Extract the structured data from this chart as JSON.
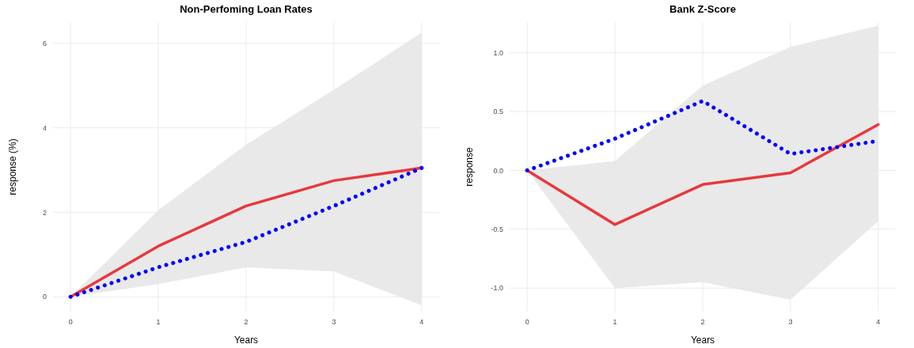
{
  "chart_data": [
    {
      "type": "line",
      "title": "Non-Perfoming Loan Rates",
      "xlabel": "Years",
      "ylabel": "response (%)",
      "x": [
        0,
        1,
        2,
        3,
        4
      ],
      "xlim": [
        -0.2,
        4.2
      ],
      "xticks": [
        0,
        1,
        2,
        3,
        4
      ],
      "ylim": [
        -0.35,
        6.5
      ],
      "yticks": [
        0,
        2,
        4,
        6
      ],
      "grid": true,
      "series": [
        {
          "color": "#e8383d",
          "line_style": "solid",
          "values": [
            0,
            1.2,
            2.15,
            2.75,
            3.05
          ],
          "lower": [
            0,
            0.3,
            0.7,
            0.6,
            -0.2
          ],
          "upper": [
            0,
            2.05,
            3.6,
            4.9,
            6.25
          ]
        },
        {
          "color": "#0000ff",
          "line_style": "dotted",
          "values": [
            0,
            0.7,
            1.3,
            2.15,
            3.05
          ]
        }
      ]
    },
    {
      "type": "line",
      "title": "Bank Z-Score",
      "xlabel": "Years",
      "ylabel": "response",
      "x": [
        0,
        1,
        2,
        3,
        4
      ],
      "xlim": [
        -0.2,
        4.2
      ],
      "xticks": [
        0,
        1,
        2,
        3,
        4
      ],
      "ylim": [
        -1.2,
        1.26
      ],
      "yticks": [
        {
          "value": -1,
          "label": "-1.0"
        },
        {
          "value": -0.5,
          "label": "-0.5"
        },
        {
          "value": 0,
          "label": "0.0"
        },
        {
          "value": 0.5,
          "label": "0.5"
        },
        {
          "value": 1,
          "label": "1.0"
        }
      ],
      "grid": true,
      "series": [
        {
          "color": "#e8383d",
          "line_style": "solid",
          "values": [
            0,
            -0.46,
            -0.12,
            -0.02,
            0.39
          ],
          "lower": [
            0,
            -1.0,
            -0.95,
            -1.1,
            -0.43
          ],
          "upper": [
            0,
            0.08,
            0.72,
            1.05,
            1.23
          ]
        },
        {
          "color": "#0000ff",
          "line_style": "dotted",
          "values": [
            0,
            0.27,
            0.59,
            0.14,
            0.25
          ]
        }
      ]
    }
  ]
}
